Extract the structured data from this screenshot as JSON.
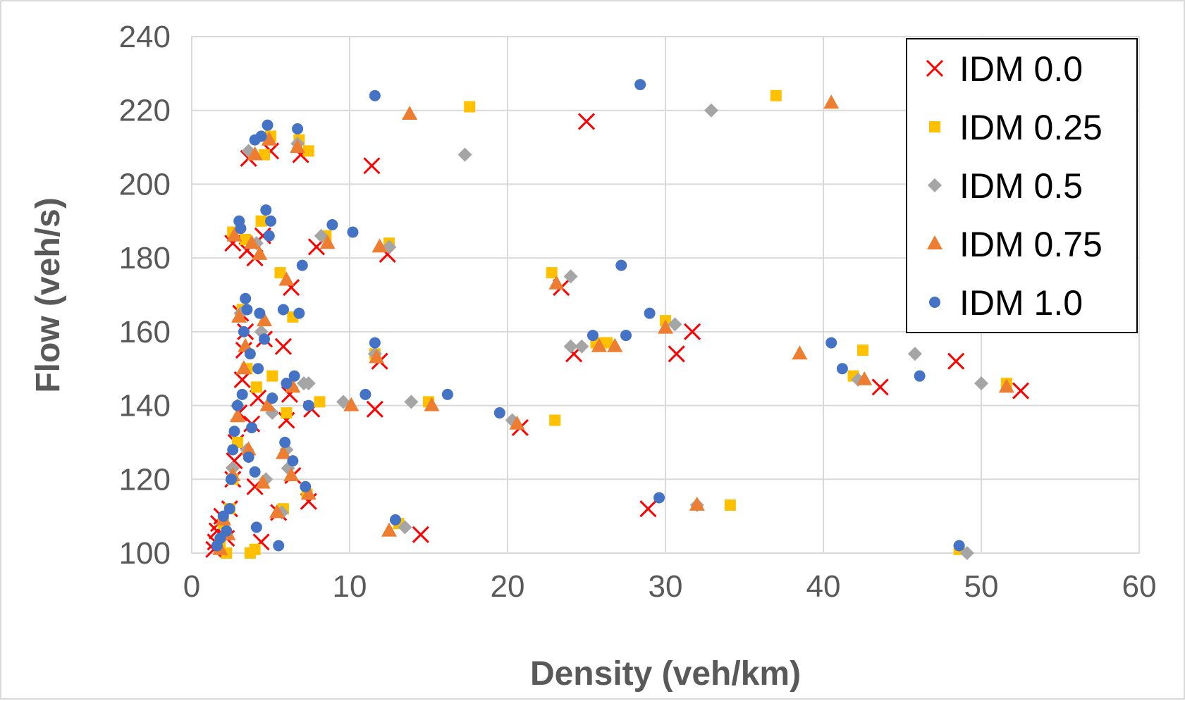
{
  "chart_data": {
    "type": "scatter",
    "title": "",
    "xlabel": "Density (veh/km)",
    "ylabel": "Flow (veh/s)",
    "xlim": [
      0,
      60
    ],
    "ylim": [
      100,
      240
    ],
    "xticks": [
      0,
      10,
      20,
      30,
      40,
      50,
      60
    ],
    "yticks": [
      100,
      120,
      140,
      160,
      180,
      200,
      220,
      240
    ],
    "grid": true,
    "legend_position": "top-right",
    "series": [
      {
        "name": "IDM 0.0",
        "marker": "x",
        "color": "#ff0000",
        "points": [
          [
            1.4,
            101
          ],
          [
            1.5,
            103
          ],
          [
            1.6,
            106
          ],
          [
            1.7,
            108
          ],
          [
            1.9,
            110
          ],
          [
            2.2,
            104
          ],
          [
            2.4,
            112
          ],
          [
            2.6,
            120
          ],
          [
            2.6,
            184
          ],
          [
            2.7,
            125
          ],
          [
            2.8,
            130
          ],
          [
            3.0,
            138
          ],
          [
            3.1,
            165
          ],
          [
            3.2,
            147
          ],
          [
            3.3,
            155
          ],
          [
            3.4,
            160
          ],
          [
            3.5,
            182
          ],
          [
            3.6,
            207
          ],
          [
            3.8,
            135
          ],
          [
            4.0,
            118
          ],
          [
            4.0,
            180
          ],
          [
            4.2,
            142
          ],
          [
            4.4,
            103
          ],
          [
            4.5,
            186
          ],
          [
            4.6,
            158
          ],
          [
            5.0,
            209
          ],
          [
            5.5,
            111
          ],
          [
            5.8,
            156
          ],
          [
            6.0,
            136
          ],
          [
            6.2,
            143
          ],
          [
            6.3,
            172
          ],
          [
            6.4,
            121
          ],
          [
            6.9,
            208
          ],
          [
            7.4,
            114
          ],
          [
            7.6,
            139
          ],
          [
            7.9,
            183
          ],
          [
            11.4,
            205
          ],
          [
            11.6,
            139
          ],
          [
            11.9,
            152
          ],
          [
            12.4,
            181
          ],
          [
            14.5,
            105
          ],
          [
            20.8,
            134
          ],
          [
            23.4,
            172
          ],
          [
            24.2,
            154
          ],
          [
            25.0,
            217
          ],
          [
            28.9,
            112
          ],
          [
            30.7,
            154
          ],
          [
            31.7,
            160
          ],
          [
            43.6,
            145
          ],
          [
            48.4,
            152
          ],
          [
            52.5,
            144
          ]
        ]
      },
      {
        "name": "IDM 0.25",
        "marker": "square",
        "color": "#ffc000",
        "points": [
          [
            1.8,
            103
          ],
          [
            2.0,
            108
          ],
          [
            2.2,
            100
          ],
          [
            2.4,
            112
          ],
          [
            2.6,
            120
          ],
          [
            2.6,
            187
          ],
          [
            2.9,
            130
          ],
          [
            3.2,
            166
          ],
          [
            3.4,
            185
          ],
          [
            3.5,
            150
          ],
          [
            3.7,
            100
          ],
          [
            4.0,
            101
          ],
          [
            4.1,
            145
          ],
          [
            4.4,
            190
          ],
          [
            4.6,
            208
          ],
          [
            5.0,
            213
          ],
          [
            5.1,
            148
          ],
          [
            5.6,
            176
          ],
          [
            5.8,
            112
          ],
          [
            6.0,
            138
          ],
          [
            6.4,
            164
          ],
          [
            6.8,
            212
          ],
          [
            7.3,
            116
          ],
          [
            7.4,
            209
          ],
          [
            8.5,
            186
          ],
          [
            8.1,
            141
          ],
          [
            12.5,
            184
          ],
          [
            11.6,
            154
          ],
          [
            13.1,
            108
          ],
          [
            15.0,
            141
          ],
          [
            17.6,
            221
          ],
          [
            22.8,
            176
          ],
          [
            23.0,
            136
          ],
          [
            25.6,
            157
          ],
          [
            26.3,
            157
          ],
          [
            30.0,
            163
          ],
          [
            34.1,
            113
          ],
          [
            37.0,
            224
          ],
          [
            41.9,
            148
          ],
          [
            42.5,
            155
          ],
          [
            48.6,
            101
          ],
          [
            51.6,
            146
          ]
        ]
      },
      {
        "name": "IDM 0.5",
        "marker": "diamond",
        "color": "#a5a5a5",
        "points": [
          [
            2.1,
            105
          ],
          [
            2.6,
            123
          ],
          [
            2.9,
            140
          ],
          [
            3.1,
            165
          ],
          [
            3.5,
            128
          ],
          [
            3.6,
            209
          ],
          [
            4.1,
            184
          ],
          [
            4.4,
            160
          ],
          [
            4.7,
            120
          ],
          [
            5.1,
            138
          ],
          [
            5.7,
            111
          ],
          [
            6.0,
            128
          ],
          [
            6.1,
            123
          ],
          [
            6.7,
            211
          ],
          [
            7.1,
            146
          ],
          [
            7.4,
            146
          ],
          [
            8.2,
            186
          ],
          [
            9.6,
            141
          ],
          [
            11.6,
            154
          ],
          [
            12.5,
            183
          ],
          [
            13.5,
            107
          ],
          [
            13.9,
            141
          ],
          [
            17.3,
            208
          ],
          [
            20.3,
            136
          ],
          [
            24.0,
            156
          ],
          [
            24.0,
            175
          ],
          [
            24.7,
            156
          ],
          [
            30.6,
            162
          ],
          [
            32.0,
            113
          ],
          [
            32.9,
            220
          ],
          [
            42.2,
            147
          ],
          [
            45.8,
            154
          ],
          [
            49.1,
            100
          ],
          [
            50.0,
            146
          ]
        ]
      },
      {
        "name": "IDM 0.75",
        "marker": "triangle",
        "color": "#ed7d31",
        "points": [
          [
            1.8,
            101
          ],
          [
            2.0,
            109
          ],
          [
            2.3,
            105
          ],
          [
            2.6,
            121
          ],
          [
            2.7,
            186
          ],
          [
            2.9,
            137
          ],
          [
            3.0,
            164
          ],
          [
            3.3,
            150
          ],
          [
            3.4,
            156
          ],
          [
            3.6,
            128
          ],
          [
            3.8,
            184
          ],
          [
            4.0,
            208
          ],
          [
            4.3,
            181
          ],
          [
            4.5,
            119
          ],
          [
            4.6,
            163
          ],
          [
            4.8,
            140
          ],
          [
            4.9,
            212
          ],
          [
            5.4,
            111
          ],
          [
            5.8,
            127
          ],
          [
            6.0,
            174
          ],
          [
            6.3,
            121
          ],
          [
            6.4,
            145
          ],
          [
            6.7,
            210
          ],
          [
            7.4,
            116
          ],
          [
            8.6,
            184
          ],
          [
            10.1,
            140
          ],
          [
            11.7,
            153
          ],
          [
            11.9,
            183
          ],
          [
            12.5,
            106
          ],
          [
            13.8,
            219
          ],
          [
            15.2,
            140
          ],
          [
            20.6,
            135
          ],
          [
            23.1,
            173
          ],
          [
            25.8,
            156
          ],
          [
            26.8,
            156
          ],
          [
            30.0,
            161
          ],
          [
            32.0,
            113
          ],
          [
            38.5,
            154
          ],
          [
            40.5,
            222
          ],
          [
            42.6,
            147
          ],
          [
            51.6,
            145
          ]
        ]
      },
      {
        "name": "IDM 1.0",
        "marker": "circle",
        "color": "#4472c4",
        "points": [
          [
            1.6,
            102
          ],
          [
            1.8,
            104
          ],
          [
            2.0,
            110
          ],
          [
            2.2,
            106
          ],
          [
            2.4,
            112
          ],
          [
            2.5,
            120
          ],
          [
            2.6,
            128
          ],
          [
            2.7,
            133
          ],
          [
            2.9,
            140
          ],
          [
            3.0,
            190
          ],
          [
            3.1,
            188
          ],
          [
            3.2,
            143
          ],
          [
            3.3,
            160
          ],
          [
            3.4,
            169
          ],
          [
            3.5,
            166
          ],
          [
            3.6,
            126
          ],
          [
            3.7,
            154
          ],
          [
            3.8,
            134
          ],
          [
            4.0,
            212
          ],
          [
            4.0,
            122
          ],
          [
            4.1,
            107
          ],
          [
            4.2,
            150
          ],
          [
            4.3,
            165
          ],
          [
            4.4,
            213
          ],
          [
            4.6,
            158
          ],
          [
            4.7,
            193
          ],
          [
            4.8,
            216
          ],
          [
            4.9,
            186
          ],
          [
            5.0,
            190
          ],
          [
            5.1,
            142
          ],
          [
            5.5,
            102
          ],
          [
            5.8,
            166
          ],
          [
            5.9,
            130
          ],
          [
            6.0,
            146
          ],
          [
            6.4,
            125
          ],
          [
            6.5,
            148
          ],
          [
            6.7,
            215
          ],
          [
            6.8,
            165
          ],
          [
            7.0,
            178
          ],
          [
            7.2,
            118
          ],
          [
            7.4,
            140
          ],
          [
            8.9,
            189
          ],
          [
            10.2,
            187
          ],
          [
            11.0,
            143
          ],
          [
            11.6,
            224
          ],
          [
            11.6,
            157
          ],
          [
            12.9,
            109
          ],
          [
            16.2,
            143
          ],
          [
            19.5,
            138
          ],
          [
            25.4,
            159
          ],
          [
            27.2,
            178
          ],
          [
            27.5,
            159
          ],
          [
            28.4,
            227
          ],
          [
            29.0,
            165
          ],
          [
            29.6,
            115
          ],
          [
            40.5,
            157
          ],
          [
            41.2,
            150
          ],
          [
            46.1,
            148
          ],
          [
            48.6,
            102
          ]
        ]
      }
    ]
  }
}
